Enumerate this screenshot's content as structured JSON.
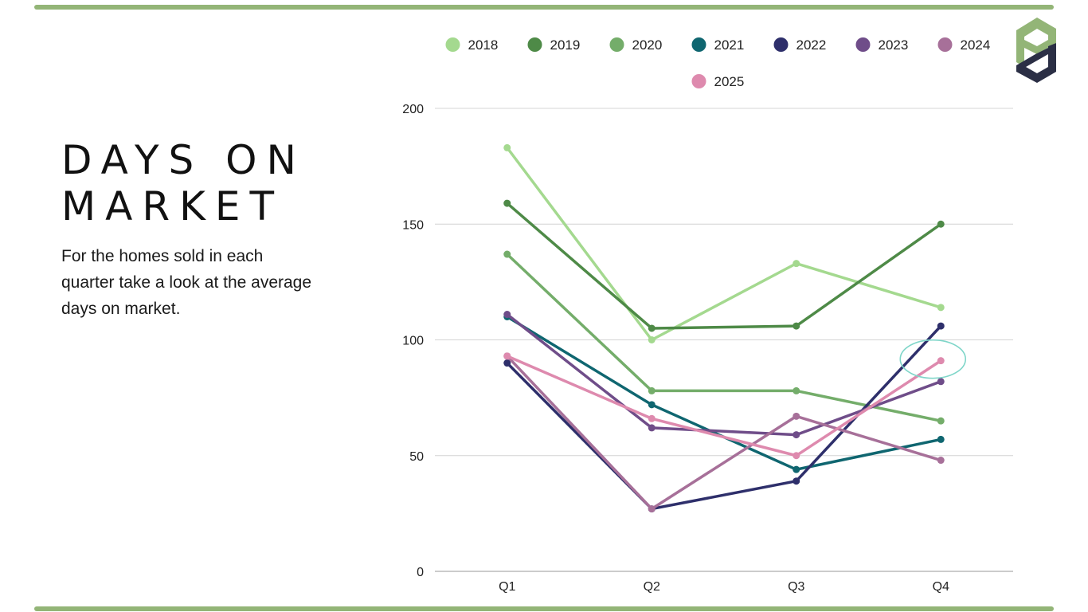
{
  "title": "DAYS ON MARKET",
  "subtitle": "For the homes sold in each quarter take a look at the average days on market.",
  "logo": {
    "icon": "pd-logo-icon",
    "colors": {
      "green": "#93b577",
      "navy": "#2b2f45"
    }
  },
  "chart_data": {
    "type": "line",
    "title": "DAYS ON MARKET",
    "xlabel": "",
    "ylabel": "",
    "categories": [
      "Q1",
      "Q2",
      "Q3",
      "Q4"
    ],
    "ylim": [
      0,
      200
    ],
    "yticks": [
      0,
      50,
      100,
      150,
      200
    ],
    "grid": true,
    "legend": "top",
    "series": [
      {
        "name": "2018",
        "color": "#a4d98f",
        "values": [
          183,
          100,
          133,
          114
        ]
      },
      {
        "name": "2019",
        "color": "#4e8a47",
        "values": [
          159,
          105,
          106,
          150
        ]
      },
      {
        "name": "2020",
        "color": "#74ad6a",
        "values": [
          137,
          78,
          78,
          65
        ]
      },
      {
        "name": "2021",
        "color": "#0f6670",
        "values": [
          110,
          72,
          44,
          57
        ]
      },
      {
        "name": "2022",
        "color": "#2e2f6b",
        "values": [
          90,
          27,
          39,
          106
        ]
      },
      {
        "name": "2023",
        "color": "#6f4d89",
        "values": [
          111,
          62,
          59,
          82
        ]
      },
      {
        "name": "2024",
        "color": "#a77099",
        "values": [
          93,
          27,
          67,
          48
        ]
      },
      {
        "name": "2025",
        "color": "#de8aae",
        "values": [
          93,
          66,
          50,
          91
        ]
      }
    ],
    "annotation": {
      "type": "circle",
      "series": "2025",
      "category": "Q4",
      "color": "#7fd6c9"
    }
  }
}
